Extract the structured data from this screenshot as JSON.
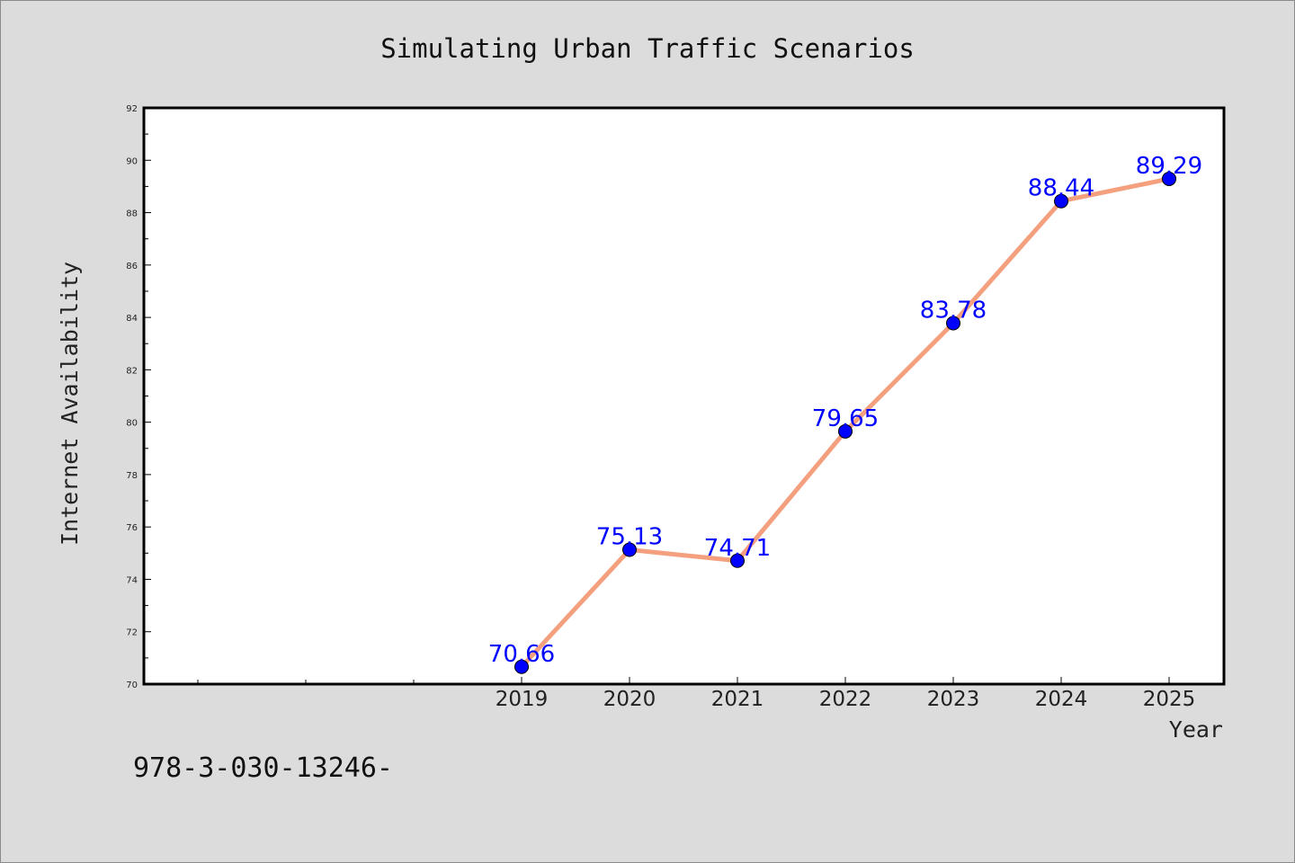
{
  "chart_data": {
    "type": "line",
    "title": "Simulating Urban Traffic Scenarios",
    "xlabel": "Year",
    "ylabel": "Internet Availability",
    "categories": [
      "2019",
      "2020",
      "2021",
      "2022",
      "2023",
      "2024",
      "2025"
    ],
    "series": [
      {
        "values": [
          70.66,
          75.13,
          74.71,
          79.65,
          83.78,
          88.44,
          89.29
        ],
        "data_labels": [
          "70.66",
          "75.13",
          "74.71",
          "79.65",
          "83.78",
          "88.44",
          "89.29"
        ],
        "line_color": "#f4a07f",
        "marker_color": "#0000ff"
      }
    ],
    "ylim": [
      70,
      92
    ],
    "yticks": [
      70,
      72,
      74,
      76,
      78,
      80,
      82,
      84,
      86,
      88,
      90,
      92
    ],
    "grid": false,
    "legend": "none"
  },
  "footnote": "978-3-030-13246-"
}
